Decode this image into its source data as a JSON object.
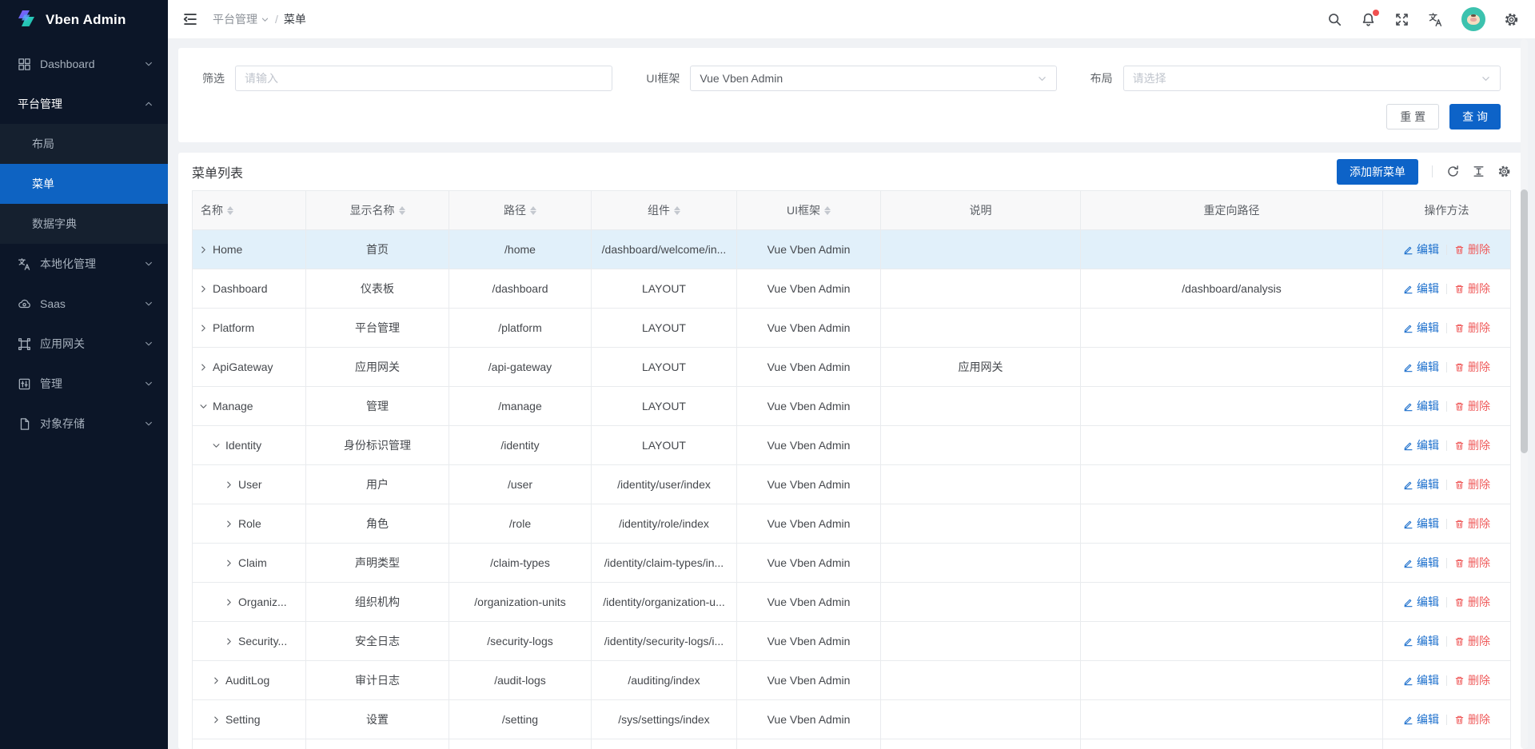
{
  "app": {
    "title": "Vben Admin"
  },
  "colors": {
    "primary": "#0d63c8",
    "sidebar_bg": "#0c1628",
    "submenu_bg": "#15202f",
    "sidebar_active": "#0e63c2",
    "row_highlight": "#e1f0fa",
    "edit_link": "#1a6ecc",
    "delete_link": "#ef5b5b",
    "notification_dot": "#f05050",
    "avatar_bg": "#3cc2ae"
  },
  "sidebar": {
    "items": [
      {
        "key": "dashboard",
        "label": "Dashboard",
        "icon": "dashboard-icon",
        "state": "collapsed"
      },
      {
        "key": "platform",
        "label": "平台管理",
        "icon": null,
        "state": "expanded",
        "children": [
          {
            "key": "layout",
            "label": "布局",
            "active": false
          },
          {
            "key": "menu",
            "label": "菜单",
            "active": true
          },
          {
            "key": "dictionary",
            "label": "数据字典",
            "active": false
          }
        ]
      },
      {
        "key": "localization",
        "label": "本地化管理",
        "icon": "localization-icon",
        "state": "collapsed"
      },
      {
        "key": "saas",
        "label": "Saas",
        "icon": "saas-icon",
        "state": "collapsed"
      },
      {
        "key": "gateway",
        "label": "应用网关",
        "icon": "gateway-icon",
        "state": "collapsed"
      },
      {
        "key": "manage",
        "label": "管理",
        "icon": "manage-icon",
        "state": "collapsed"
      },
      {
        "key": "storage",
        "label": "对象存储",
        "icon": "storage-icon",
        "state": "collapsed"
      }
    ]
  },
  "header": {
    "breadcrumb": {
      "parent": "平台管理",
      "current": "菜单"
    }
  },
  "filter": {
    "keyword_label": "筛选",
    "keyword_placeholder": "请输入",
    "framework_label": "UI框架",
    "framework_value": "Vue Vben Admin",
    "layout_label": "布局",
    "layout_placeholder": "请选择",
    "reset_label": "重 置",
    "search_label": "查 询"
  },
  "table": {
    "title": "菜单列表",
    "add_button_label": "添加新菜单",
    "columns": [
      {
        "label": "名称",
        "sortable": true,
        "align": "left"
      },
      {
        "label": "显示名称",
        "sortable": true,
        "align": "center"
      },
      {
        "label": "路径",
        "sortable": true,
        "align": "center"
      },
      {
        "label": "组件",
        "sortable": true,
        "align": "center"
      },
      {
        "label": "UI框架",
        "sortable": true,
        "align": "center"
      },
      {
        "label": "说明",
        "sortable": false,
        "align": "center"
      },
      {
        "label": "重定向路径",
        "sortable": false,
        "align": "center"
      },
      {
        "label": "操作方法",
        "sortable": false,
        "align": "center"
      }
    ],
    "edit_label": "编辑",
    "delete_label": "删除",
    "rows": [
      {
        "name": "Home",
        "depth": 0,
        "expanded": false,
        "highlighted": true,
        "display_name": "首页",
        "path": "/home",
        "component": "/dashboard/welcome/in...",
        "framework": "Vue Vben Admin",
        "description": "",
        "redirect": ""
      },
      {
        "name": "Dashboard",
        "depth": 0,
        "expanded": false,
        "highlighted": false,
        "display_name": "仪表板",
        "path": "/dashboard",
        "component": "LAYOUT",
        "framework": "Vue Vben Admin",
        "description": "",
        "redirect": "/dashboard/analysis"
      },
      {
        "name": "Platform",
        "depth": 0,
        "expanded": false,
        "highlighted": false,
        "display_name": "平台管理",
        "path": "/platform",
        "component": "LAYOUT",
        "framework": "Vue Vben Admin",
        "description": "",
        "redirect": ""
      },
      {
        "name": "ApiGateway",
        "depth": 0,
        "expanded": false,
        "highlighted": false,
        "display_name": "应用网关",
        "path": "/api-gateway",
        "component": "LAYOUT",
        "framework": "Vue Vben Admin",
        "description": "应用网关",
        "redirect": ""
      },
      {
        "name": "Manage",
        "depth": 0,
        "expanded": true,
        "highlighted": false,
        "display_name": "管理",
        "path": "/manage",
        "component": "LAYOUT",
        "framework": "Vue Vben Admin",
        "description": "",
        "redirect": ""
      },
      {
        "name": "Identity",
        "depth": 1,
        "expanded": true,
        "highlighted": false,
        "display_name": "身份标识管理",
        "path": "/identity",
        "component": "LAYOUT",
        "framework": "Vue Vben Admin",
        "description": "",
        "redirect": ""
      },
      {
        "name": "User",
        "depth": 2,
        "expanded": false,
        "highlighted": false,
        "display_name": "用户",
        "path": "/user",
        "component": "/identity/user/index",
        "framework": "Vue Vben Admin",
        "description": "",
        "redirect": ""
      },
      {
        "name": "Role",
        "depth": 2,
        "expanded": false,
        "highlighted": false,
        "display_name": "角色",
        "path": "/role",
        "component": "/identity/role/index",
        "framework": "Vue Vben Admin",
        "description": "",
        "redirect": ""
      },
      {
        "name": "Claim",
        "depth": 2,
        "expanded": false,
        "highlighted": false,
        "display_name": "声明类型",
        "path": "/claim-types",
        "component": "/identity/claim-types/in...",
        "framework": "Vue Vben Admin",
        "description": "",
        "redirect": ""
      },
      {
        "name": "Organiz...",
        "depth": 2,
        "expanded": false,
        "highlighted": false,
        "display_name": "组织机构",
        "path": "/organization-units",
        "component": "/identity/organization-u...",
        "framework": "Vue Vben Admin",
        "description": "",
        "redirect": ""
      },
      {
        "name": "Security...",
        "depth": 2,
        "expanded": false,
        "highlighted": false,
        "display_name": "安全日志",
        "path": "/security-logs",
        "component": "/identity/security-logs/i...",
        "framework": "Vue Vben Admin",
        "description": "",
        "redirect": ""
      },
      {
        "name": "AuditLog",
        "depth": 1,
        "expanded": false,
        "highlighted": false,
        "display_name": "审计日志",
        "path": "/audit-logs",
        "component": "/auditing/index",
        "framework": "Vue Vben Admin",
        "description": "",
        "redirect": ""
      },
      {
        "name": "Setting",
        "depth": 1,
        "expanded": false,
        "highlighted": false,
        "display_name": "设置",
        "path": "/setting",
        "component": "/sys/settings/index",
        "framework": "Vue Vben Admin",
        "description": "",
        "redirect": ""
      }
    ]
  }
}
